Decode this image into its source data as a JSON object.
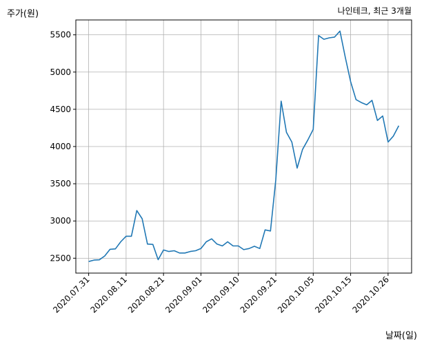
{
  "chart_data": {
    "type": "line",
    "title": "나인테크, 최근 3개월",
    "xlabel": "날짜(일)",
    "ylabel": "주가(원)",
    "grid": true,
    "ylim": [
      2300,
      5700
    ],
    "yticks": [
      2500,
      3000,
      3500,
      4000,
      4500,
      5000,
      5500
    ],
    "xlim": [
      "2020-07-30",
      "2020-11-02"
    ],
    "xticks": [
      {
        "date": "2020-07-31",
        "label": "2020.07.31"
      },
      {
        "date": "2020-08-11",
        "label": "2020.08.11"
      },
      {
        "date": "2020-08-21",
        "label": "2020.08.21"
      },
      {
        "date": "2020-09-01",
        "label": "2020.09.01"
      },
      {
        "date": "2020-09-10",
        "label": "2020.09.10"
      },
      {
        "date": "2020-09-21",
        "label": "2020.09.21"
      },
      {
        "date": "2020-10-05",
        "label": "2020.10.05"
      },
      {
        "date": "2020-10-15",
        "label": "2020.10.15"
      },
      {
        "date": "2020-10-26",
        "label": "2020.10.26"
      }
    ],
    "series": [
      {
        "color": "#1f77b4",
        "points": [
          [
            "2020-07-31",
            2455
          ],
          [
            "2020-08-03",
            2475
          ],
          [
            "2020-08-04",
            2478
          ],
          [
            "2020-08-05",
            2530
          ],
          [
            "2020-08-06",
            2620
          ],
          [
            "2020-08-07",
            2625
          ],
          [
            "2020-08-10",
            2720
          ],
          [
            "2020-08-11",
            2795
          ],
          [
            "2020-08-12",
            2795
          ],
          [
            "2020-08-13",
            3140
          ],
          [
            "2020-08-14",
            3030
          ],
          [
            "2020-08-18",
            2690
          ],
          [
            "2020-08-19",
            2685
          ],
          [
            "2020-08-20",
            2480
          ],
          [
            "2020-08-21",
            2610
          ],
          [
            "2020-08-24",
            2590
          ],
          [
            "2020-08-25",
            2600
          ],
          [
            "2020-08-26",
            2570
          ],
          [
            "2020-08-27",
            2570
          ],
          [
            "2020-08-28",
            2590
          ],
          [
            "2020-08-31",
            2600
          ],
          [
            "2020-09-01",
            2630
          ],
          [
            "2020-09-02",
            2720
          ],
          [
            "2020-09-03",
            2760
          ],
          [
            "2020-09-04",
            2690
          ],
          [
            "2020-09-07",
            2665
          ],
          [
            "2020-09-08",
            2720
          ],
          [
            "2020-09-09",
            2665
          ],
          [
            "2020-09-10",
            2665
          ],
          [
            "2020-09-11",
            2615
          ],
          [
            "2020-09-14",
            2630
          ],
          [
            "2020-09-15",
            2660
          ],
          [
            "2020-09-16",
            2630
          ],
          [
            "2020-09-17",
            2880
          ],
          [
            "2020-09-18",
            2865
          ],
          [
            "2020-09-21",
            3550
          ],
          [
            "2020-09-22",
            4610
          ],
          [
            "2020-09-23",
            4190
          ],
          [
            "2020-09-24",
            4060
          ],
          [
            "2020-09-25",
            3710
          ],
          [
            "2020-09-28",
            3960
          ],
          [
            "2020-09-29",
            4090
          ],
          [
            "2020-10-05",
            4230
          ],
          [
            "2020-10-06",
            5490
          ],
          [
            "2020-10-07",
            5440
          ],
          [
            "2020-10-08",
            5460
          ],
          [
            "2020-10-12",
            5470
          ],
          [
            "2020-10-13",
            5550
          ],
          [
            "2020-10-14",
            5200
          ],
          [
            "2020-10-15",
            4870
          ],
          [
            "2020-10-16",
            4630
          ],
          [
            "2020-10-19",
            4590
          ],
          [
            "2020-10-20",
            4560
          ],
          [
            "2020-10-21",
            4620
          ],
          [
            "2020-10-22",
            4350
          ],
          [
            "2020-10-23",
            4410
          ],
          [
            "2020-10-26",
            4060
          ],
          [
            "2020-10-27",
            4140
          ],
          [
            "2020-10-28",
            4280
          ]
        ]
      }
    ]
  }
}
